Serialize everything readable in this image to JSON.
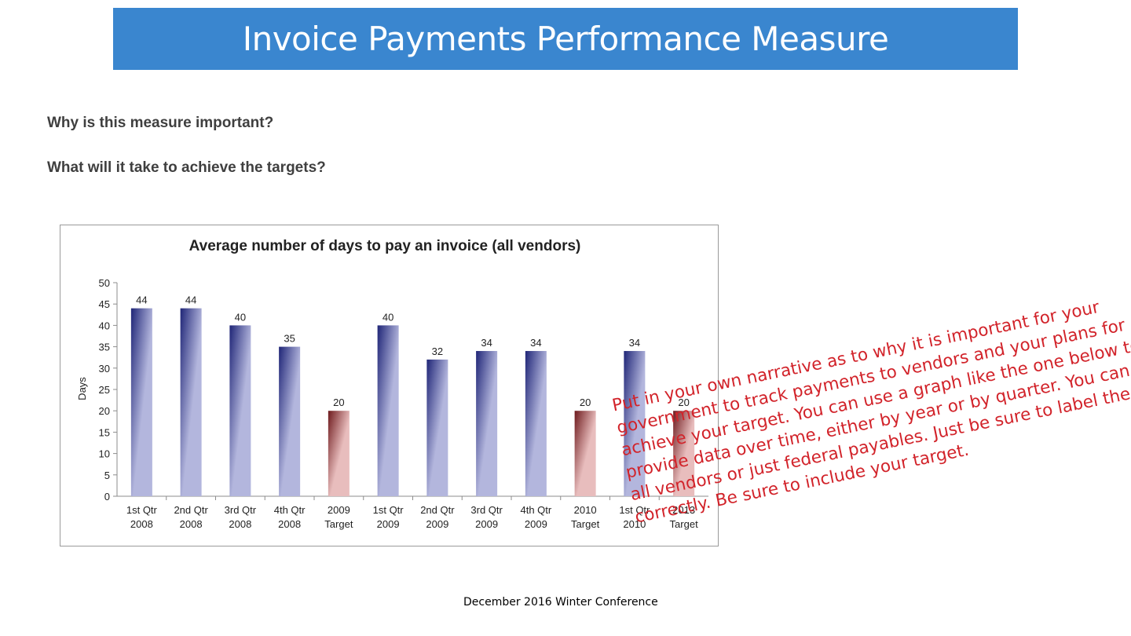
{
  "slide": {
    "title": "Invoice Payments Performance Measure",
    "question_1": "Why is this measure important?",
    "question_2": "What will it take to achieve the targets?",
    "narrative": "Put in your own narrative as to why it is important for your government to track payments to vendors and your plans for achieve your target. You can use a graph like the one below to provide data over time, either by year or by quarter. You can use all vendors or just federal payables. Just be sure to label the graph correctly. Be sure to include your target.",
    "footer": "December 2016 Winter Conference",
    "colors": {
      "title_bar": "#3a86cf",
      "narrative_text": "#d2232a",
      "actual_bar_dark": "#1f2577",
      "actual_bar_light": "#b3b6dd",
      "target_bar_dark": "#6e1a1d",
      "target_bar_light": "#e8bdbd"
    }
  },
  "chart_data": {
    "type": "bar",
    "title": "Average number of days to pay an invoice (all vendors)",
    "xlabel": "",
    "ylabel": "Days",
    "ylim": [
      0,
      50
    ],
    "yticks": [
      0,
      5,
      10,
      15,
      20,
      25,
      30,
      35,
      40,
      45,
      50
    ],
    "grid": false,
    "categories": [
      [
        "1st Qtr",
        "2008"
      ],
      [
        "2nd Qtr",
        "2008"
      ],
      [
        "3rd Qtr",
        "2008"
      ],
      [
        "4th Qtr",
        "2008"
      ],
      [
        "2009",
        "Target"
      ],
      [
        "1st Qtr",
        "2009"
      ],
      [
        "2nd Qtr",
        "2009"
      ],
      [
        "3rd Qtr",
        "2009"
      ],
      [
        "4th Qtr",
        "2009"
      ],
      [
        "2010",
        "Target"
      ],
      [
        "1st Qtr",
        "2010"
      ],
      [
        "2013",
        "Target"
      ]
    ],
    "values": [
      44,
      44,
      40,
      35,
      20,
      40,
      32,
      34,
      34,
      20,
      34,
      20
    ],
    "is_target": [
      false,
      false,
      false,
      false,
      true,
      false,
      false,
      false,
      false,
      true,
      false,
      true
    ],
    "data_labels": [
      "44",
      "44",
      "40",
      "35",
      "20",
      "40",
      "32",
      "34",
      "34",
      "20",
      "34",
      "20"
    ]
  }
}
